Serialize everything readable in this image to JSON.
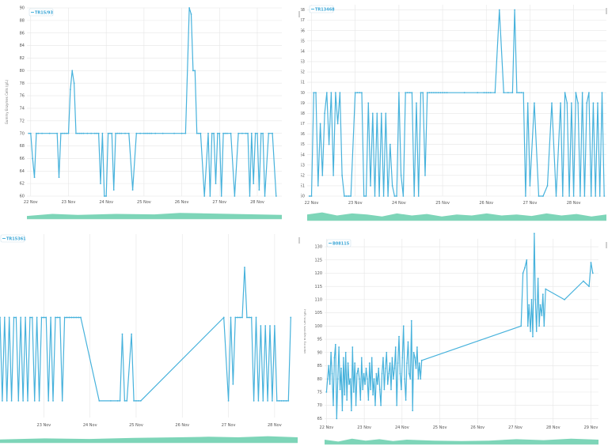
{
  "colors": {
    "series": "#47b2dc",
    "navigator": "#6fd0b0",
    "grid": "#e6e6e6"
  },
  "chart_data": [
    {
      "type": "line",
      "legend": "TR15/93",
      "ylabel": "Gummy Enzymes Cells (g/L)",
      "yticks": [
        "60",
        "62",
        "64",
        "66",
        "68",
        "70",
        "72",
        "74",
        "76",
        "78",
        "80",
        "82",
        "84",
        "86",
        "88",
        "90"
      ],
      "ylim": [
        60,
        90
      ],
      "xticks": [
        {
          "label": "22 Nov",
          "x": 22
        },
        {
          "label": "23 Nov",
          "x": 23
        },
        {
          "label": "24 Nov",
          "x": 24
        },
        {
          "label": "25 Nov",
          "x": 25
        },
        {
          "label": "26 Nov",
          "x": 26
        },
        {
          "label": "27 Nov",
          "x": 27
        },
        {
          "label": "28 Nov",
          "x": 28
        }
      ],
      "xlim": [
        21.9,
        28.65
      ],
      "nav": [
        [
          0,
          0.3
        ],
        [
          0.1,
          0.5
        ],
        [
          0.2,
          0.4
        ],
        [
          0.35,
          0.5
        ],
        [
          0.5,
          0.45
        ],
        [
          0.6,
          0.6
        ],
        [
          0.7,
          0.55
        ],
        [
          0.8,
          0.5
        ],
        [
          0.9,
          0.45
        ],
        [
          1,
          0.4
        ]
      ],
      "x": [
        21.95,
        22.0,
        22.05,
        22.1,
        22.15,
        22.2,
        22.3,
        22.5,
        22.7,
        22.75,
        22.8,
        22.85,
        22.9,
        22.95,
        23.0,
        23.05,
        23.1,
        23.15,
        23.2,
        23.25,
        23.3,
        23.35,
        23.4,
        23.5,
        23.6,
        23.7,
        23.75,
        23.8,
        23.85,
        23.9,
        23.95,
        24.0,
        24.05,
        24.1,
        24.15,
        24.2,
        24.25,
        24.3,
        24.35,
        24.4,
        24.5,
        24.6,
        24.7,
        24.8,
        24.9,
        25.0,
        25.05,
        25.1,
        25.15,
        25.2,
        25.3,
        25.5,
        25.8,
        26.0,
        26.1,
        26.2,
        26.25,
        26.3,
        26.35,
        26.4,
        26.45,
        26.5,
        26.6,
        26.7,
        26.75,
        26.8,
        26.85,
        26.9,
        26.95,
        27.0,
        27.05,
        27.1,
        27.15,
        27.2,
        27.3,
        27.4,
        27.5,
        27.6,
        27.7,
        27.75,
        27.8,
        27.85,
        27.9,
        27.95,
        28.0,
        28.05,
        28.1,
        28.15,
        28.2,
        28.3,
        28.4,
        28.5
      ],
      "y": [
        70,
        70,
        66,
        63,
        70,
        70,
        70,
        70,
        70,
        63,
        70,
        70,
        70,
        70,
        70,
        77,
        80,
        78,
        70,
        70,
        70,
        70,
        70,
        70,
        70,
        70,
        70,
        70,
        62,
        70,
        60,
        60,
        70,
        70,
        70,
        61,
        70,
        70,
        70,
        70,
        70,
        70,
        61,
        70,
        70,
        70,
        70,
        70,
        70,
        70,
        70,
        70,
        70,
        70,
        70,
        90,
        89,
        80,
        80,
        70,
        70,
        70,
        60,
        70,
        60,
        70,
        70,
        62,
        70,
        70,
        60,
        70,
        70,
        70,
        70,
        60,
        70,
        70,
        70,
        70,
        60,
        70,
        62,
        70,
        70,
        61,
        70,
        70,
        60,
        70,
        70,
        60
      ]
    },
    {
      "type": "line",
      "legend": "TR13468",
      "ylabel": "",
      "yticks": [
        "50",
        "51",
        "52",
        "53",
        "54",
        "55",
        "56",
        "57",
        "58",
        "59",
        "60",
        "61",
        "62",
        "63",
        "64",
        "65",
        "66",
        "67",
        "68"
      ],
      "ylim": [
        50,
        68.5
      ],
      "xticks": [
        {
          "label": "22 Nov",
          "x": 22
        },
        {
          "label": "23 Nov",
          "x": 23
        },
        {
          "label": "24 Nov",
          "x": 24
        },
        {
          "label": "25 Nov",
          "x": 25
        },
        {
          "label": "26 Nov",
          "x": 26
        },
        {
          "label": "27 Nov",
          "x": 27
        },
        {
          "label": "28 Nov",
          "x": 28
        }
      ],
      "xlim": [
        21.9,
        28.75
      ],
      "nav": [
        [
          0,
          0.6
        ],
        [
          0.05,
          0.8
        ],
        [
          0.1,
          0.5
        ],
        [
          0.15,
          0.7
        ],
        [
          0.2,
          0.6
        ],
        [
          0.25,
          0.4
        ],
        [
          0.3,
          0.7
        ],
        [
          0.35,
          0.5
        ],
        [
          0.4,
          0.65
        ],
        [
          0.45,
          0.4
        ],
        [
          0.5,
          0.6
        ],
        [
          0.55,
          0.5
        ],
        [
          0.6,
          0.7
        ],
        [
          0.65,
          0.5
        ],
        [
          0.7,
          0.6
        ],
        [
          0.75,
          0.45
        ],
        [
          0.8,
          0.7
        ],
        [
          0.85,
          0.5
        ],
        [
          0.9,
          0.65
        ],
        [
          0.95,
          0.4
        ],
        [
          1,
          0.6
        ]
      ],
      "x": [
        21.95,
        22.0,
        22.05,
        22.1,
        22.15,
        22.2,
        22.25,
        22.3,
        22.35,
        22.4,
        22.45,
        22.5,
        22.55,
        22.6,
        22.65,
        22.7,
        22.75,
        22.8,
        22.85,
        22.9,
        23.0,
        23.05,
        23.1,
        23.15,
        23.2,
        23.25,
        23.3,
        23.35,
        23.4,
        23.45,
        23.5,
        23.55,
        23.6,
        23.65,
        23.7,
        23.75,
        23.8,
        23.85,
        23.9,
        23.95,
        24.0,
        24.05,
        24.1,
        24.15,
        24.2,
        24.25,
        24.3,
        24.35,
        24.4,
        24.45,
        24.5,
        24.55,
        24.6,
        24.65,
        24.7,
        24.75,
        24.8,
        24.85,
        24.9,
        24.95,
        25.0,
        25.05,
        25.1,
        25.5,
        25.8,
        25.95,
        26.0,
        26.05,
        26.1,
        26.2,
        26.3,
        26.4,
        26.5,
        26.6,
        26.65,
        26.7,
        26.75,
        26.8,
        26.85,
        26.9,
        26.95,
        27.0,
        27.1,
        27.2,
        27.3,
        27.4,
        27.5,
        27.6,
        27.7,
        27.75,
        27.8,
        27.85,
        27.9,
        27.95,
        28.0,
        28.05,
        28.1,
        28.15,
        28.2,
        28.25,
        28.3,
        28.35,
        28.4,
        28.45,
        28.5,
        28.55,
        28.6,
        28.65,
        28.7
      ],
      "y": [
        50,
        50,
        60,
        60,
        51,
        57,
        52,
        58,
        60,
        55,
        60,
        52,
        60,
        57,
        60,
        52,
        50,
        50,
        50,
        50,
        60,
        60,
        60,
        60,
        50,
        50,
        59,
        51,
        58,
        50,
        58,
        50,
        58,
        50,
        58,
        50,
        55,
        51,
        50,
        50,
        60,
        52,
        50,
        60,
        60,
        60,
        60,
        50,
        59,
        50,
        60,
        60,
        52,
        60,
        60,
        60,
        60,
        60,
        60,
        60,
        60,
        60,
        60,
        60,
        60,
        60,
        60,
        60,
        60,
        60,
        68,
        60,
        60,
        60,
        68,
        60,
        60,
        60,
        60,
        50,
        59,
        51,
        59,
        50,
        50,
        51,
        59,
        50,
        59,
        50,
        60,
        59,
        50,
        59,
        50,
        60,
        59,
        50,
        60,
        50,
        59,
        60,
        50,
        59,
        50,
        59,
        50,
        60,
        50
      ]
    },
    {
      "type": "line",
      "legend": "TR15361",
      "ylabel": "",
      "yticks": [],
      "ylim": [
        50,
        72
      ],
      "xticks": [
        {
          "label": "23 Nov",
          "x": 23
        },
        {
          "label": "24 Nov",
          "x": 24
        },
        {
          "label": "25 Nov",
          "x": 25
        },
        {
          "label": "26 Nov",
          "x": 26
        },
        {
          "label": "27 Nov",
          "x": 27
        },
        {
          "label": "28 Nov",
          "x": 28
        }
      ],
      "xlim": [
        22.05,
        28.5
      ],
      "nav": [
        [
          0,
          0.3
        ],
        [
          0.15,
          0.4
        ],
        [
          0.3,
          0.35
        ],
        [
          0.45,
          0.45
        ],
        [
          0.6,
          0.5
        ],
        [
          0.7,
          0.55
        ],
        [
          0.8,
          0.5
        ],
        [
          0.9,
          0.6
        ],
        [
          1,
          0.5
        ]
      ],
      "x": [
        22.05,
        22.1,
        22.15,
        22.2,
        22.25,
        22.3,
        22.35,
        22.4,
        22.45,
        22.5,
        22.55,
        22.6,
        22.65,
        22.7,
        22.75,
        22.8,
        22.85,
        22.9,
        22.95,
        23.0,
        23.05,
        23.1,
        23.15,
        23.2,
        23.25,
        23.3,
        23.35,
        23.4,
        23.45,
        23.5,
        23.55,
        23.6,
        23.65,
        23.7,
        23.75,
        23.8,
        24.2,
        24.45,
        24.6,
        24.65,
        24.7,
        24.75,
        24.8,
        24.9,
        24.95,
        25.0,
        25.05,
        25.1,
        26.9,
        27.0,
        27.05,
        27.1,
        27.15,
        27.2,
        27.25,
        27.3,
        27.35,
        27.4,
        27.45,
        27.5,
        27.55,
        27.6,
        27.65,
        27.7,
        27.75,
        27.8,
        27.85,
        27.9,
        27.95,
        28.0,
        28.05,
        28.1,
        28.15,
        28.2,
        28.25,
        28.3,
        28.35
      ],
      "y": [
        62,
        52,
        62,
        52,
        62,
        52,
        62,
        62,
        52,
        62,
        52,
        62,
        52,
        62,
        62,
        52,
        62,
        52,
        62,
        62,
        62,
        52,
        62,
        52,
        62,
        62,
        62,
        52,
        62,
        62,
        62,
        62,
        62,
        62,
        62,
        62,
        52,
        52,
        52,
        52,
        60,
        52,
        52,
        60,
        52,
        52,
        52,
        52,
        62,
        52,
        62,
        54,
        62,
        62,
        62,
        62,
        68,
        62,
        62,
        62,
        52,
        62,
        52,
        61,
        52,
        61,
        52,
        61,
        52,
        61,
        52,
        52,
        52,
        52,
        52,
        52,
        62
      ]
    },
    {
      "type": "line",
      "legend": "B08115",
      "ylabel": "Gummy Enzymes Cells (g/L)",
      "yticks": [
        "65",
        "70",
        "75",
        "80",
        "85",
        "90",
        "95",
        "100",
        "105",
        "110",
        "115",
        "120",
        "125",
        "130"
      ],
      "ylim": [
        63,
        133
      ],
      "xticks": [
        {
          "label": "22 Nov",
          "x": 22
        },
        {
          "label": "23 Nov",
          "x": 23
        },
        {
          "label": "24 Nov",
          "x": 24
        },
        {
          "label": "25 Nov",
          "x": 25
        },
        {
          "label": "26 Nov",
          "x": 26
        },
        {
          "label": "27 Nov",
          "x": 27
        },
        {
          "label": "28 Nov",
          "x": 28
        },
        {
          "label": "29 Nov",
          "x": 29
        }
      ],
      "xlim": [
        21.95,
        29.2
      ],
      "nav": [
        [
          0,
          0.5
        ],
        [
          0.05,
          0.3
        ],
        [
          0.1,
          0.6
        ],
        [
          0.15,
          0.4
        ],
        [
          0.2,
          0.55
        ],
        [
          0.25,
          0.35
        ],
        [
          0.3,
          0.5
        ],
        [
          0.35,
          0.45
        ],
        [
          0.4,
          0.4
        ],
        [
          0.5,
          0.35
        ],
        [
          0.6,
          0.4
        ],
        [
          0.7,
          0.55
        ],
        [
          0.8,
          0.45
        ],
        [
          0.9,
          0.6
        ],
        [
          1,
          0.5
        ]
      ],
      "x": [
        22.0,
        22.03,
        22.06,
        22.09,
        22.12,
        22.15,
        22.18,
        22.21,
        22.24,
        22.27,
        22.3,
        22.33,
        22.36,
        22.39,
        22.42,
        22.45,
        22.48,
        22.51,
        22.54,
        22.57,
        22.6,
        22.63,
        22.66,
        22.69,
        22.72,
        22.75,
        22.78,
        22.81,
        22.84,
        22.87,
        22.9,
        22.93,
        22.96,
        22.99,
        23.02,
        23.05,
        23.08,
        23.11,
        23.14,
        23.17,
        23.2,
        23.23,
        23.26,
        23.29,
        23.32,
        23.35,
        23.38,
        23.41,
        23.44,
        23.47,
        23.5,
        23.53,
        23.56,
        23.59,
        23.62,
        23.65,
        23.68,
        23.71,
        23.74,
        23.77,
        23.8,
        23.83,
        23.86,
        23.89,
        23.92,
        23.95,
        23.98,
        24.01,
        24.04,
        24.07,
        24.1,
        24.13,
        24.16,
        24.19,
        24.22,
        24.25,
        24.28,
        24.31,
        24.34,
        24.37,
        24.4,
        24.43,
        24.46,
        24.49,
        24.52,
        27.15,
        27.2,
        27.25,
        27.3,
        27.33,
        27.36,
        27.4,
        27.43,
        27.46,
        27.5,
        27.53,
        27.56,
        27.6,
        27.63,
        27.66,
        27.7,
        27.73,
        27.76,
        27.8,
        28.3,
        28.8,
        28.95,
        29.0,
        29.05
      ],
      "y": [
        75,
        80,
        85,
        78,
        90,
        82,
        70,
        88,
        93,
        65,
        80,
        92,
        76,
        84,
        68,
        88,
        74,
        90,
        72,
        86,
        78,
        80,
        68,
        92,
        75,
        86,
        70,
        82,
        84,
        80,
        72,
        88,
        76,
        82,
        78,
        84,
        80,
        72,
        86,
        76,
        88,
        74,
        80,
        70,
        82,
        78,
        84,
        76,
        70,
        82,
        88,
        76,
        84,
        90,
        78,
        82,
        86,
        76,
        88,
        80,
        84,
        92,
        70,
        86,
        96,
        82,
        76,
        88,
        100,
        80,
        72,
        86,
        94,
        82,
        80,
        102,
        68,
        90,
        88,
        84,
        92,
        80,
        86,
        80,
        87,
        100,
        120,
        122,
        125,
        100,
        108,
        98,
        110,
        96,
        135,
        110,
        98,
        118,
        100,
        108,
        104,
        112,
        100,
        114,
        110,
        117,
        115,
        124,
        120
      ]
    }
  ]
}
